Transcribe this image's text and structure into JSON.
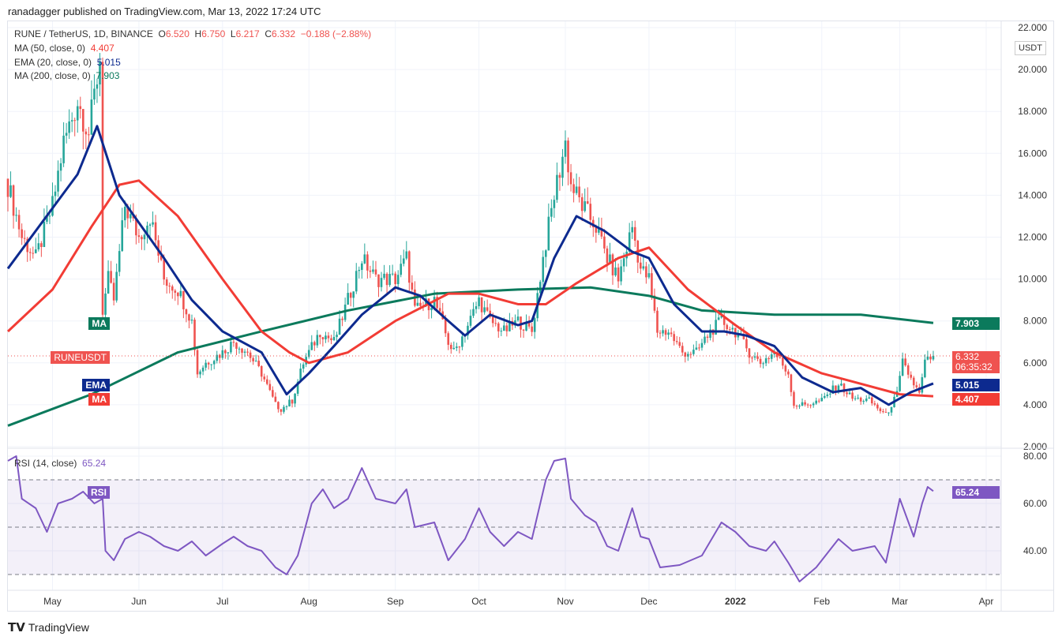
{
  "header": {
    "published": "ranadagger published on TradingView.com, Mar 13, 2022 17:24 UTC"
  },
  "legend": {
    "symbol": "RUNE / TetherUS, 1D, BINANCE",
    "o_label": "O",
    "o": "6.520",
    "h_label": "H",
    "h": "6.750",
    "l_label": "L",
    "l": "6.217",
    "c_label": "C",
    "c": "6.332",
    "change": "−0.188 (−2.88%)",
    "ma50_label": "MA (50, close, 0)",
    "ma50": "4.407",
    "ema20_label": "EMA (20, close, 0)",
    "ema20": "5.015",
    "ma200_label": "MA (200, close, 0)",
    "ma200": "7.903",
    "rsi_label": "RSI (14, close)",
    "rsi": "65.24"
  },
  "tags": {
    "ma_label": "MA",
    "ma200": "7.903",
    "symbol": "RUNEUSDT",
    "price": "6.332",
    "countdown": "06:35:32",
    "ema_label": "EMA",
    "ema": "5.015",
    "ma50": "4.407",
    "rsi_label": "RSI",
    "rsi": "65.24",
    "currency": "USDT"
  },
  "colors": {
    "up": "#26a69a",
    "down": "#ef5350",
    "ema": "#0d2a8f",
    "ma50": "#f23c35",
    "ma200": "#0b7a5c",
    "rsi": "#7e57c2"
  },
  "footer": {
    "brand": "TradingView"
  },
  "chart_data": [
    {
      "type": "candlestick",
      "title": "RUNE / TetherUS, 1D, BINANCE",
      "ylim": [
        2,
        22
      ],
      "yticks": [
        "22.000",
        "20.000",
        "18.000",
        "16.000",
        "14.000",
        "12.000",
        "10.000",
        "8.000",
        "6.000",
        "4.000",
        "2.000"
      ],
      "xticks": [
        "May",
        "Jun",
        "Jul",
        "Aug",
        "Sep",
        "Oct",
        "Nov",
        "Dec",
        "2022",
        "Feb",
        "Mar",
        "Apr"
      ],
      "close": [
        [
          "2021-04-15",
          14.5
        ],
        [
          "2021-04-20",
          12
        ],
        [
          "2021-04-25",
          11
        ],
        [
          "2021-05-01",
          13.5
        ],
        [
          "2021-05-05",
          16.5
        ],
        [
          "2021-05-10",
          18.5
        ],
        [
          "2021-05-14",
          17
        ],
        [
          "2021-05-18",
          20.5
        ],
        [
          "2021-05-19",
          8.5
        ],
        [
          "2021-05-21",
          10
        ],
        [
          "2021-05-23",
          9
        ],
        [
          "2021-05-27",
          13.5
        ],
        [
          "2021-06-01",
          12
        ],
        [
          "2021-06-05",
          13
        ],
        [
          "2021-06-10",
          10
        ],
        [
          "2021-06-15",
          9.5
        ],
        [
          "2021-06-20",
          8
        ],
        [
          "2021-06-22",
          5.5
        ],
        [
          "2021-06-25",
          6
        ],
        [
          "2021-07-01",
          6.5
        ],
        [
          "2021-07-05",
          7
        ],
        [
          "2021-07-10",
          6.5
        ],
        [
          "2021-07-15",
          5.5
        ],
        [
          "2021-07-20",
          4
        ],
        [
          "2021-07-22",
          3.8
        ],
        [
          "2021-07-26",
          4.2
        ],
        [
          "2021-07-30",
          6
        ],
        [
          "2021-08-05",
          7.5
        ],
        [
          "2021-08-10",
          7
        ],
        [
          "2021-08-15",
          9
        ],
        [
          "2021-08-20",
          11
        ],
        [
          "2021-08-25",
          10
        ],
        [
          "2021-09-01",
          10
        ],
        [
          "2021-09-05",
          11
        ],
        [
          "2021-09-08",
          8.5
        ],
        [
          "2021-09-15",
          9
        ],
        [
          "2021-09-20",
          7
        ],
        [
          "2021-09-22",
          6.5
        ],
        [
          "2021-09-26",
          7.5
        ],
        [
          "2021-10-01",
          9
        ],
        [
          "2021-10-05",
          8
        ],
        [
          "2021-10-10",
          7.5
        ],
        [
          "2021-10-15",
          8
        ],
        [
          "2021-10-20",
          7.5
        ],
        [
          "2021-10-24",
          11
        ],
        [
          "2021-10-28",
          14
        ],
        [
          "2021-11-01",
          16.5
        ],
        [
          "2021-11-03",
          14.5
        ],
        [
          "2021-11-07",
          13.5
        ],
        [
          "2021-11-12",
          12.5
        ],
        [
          "2021-11-16",
          11
        ],
        [
          "2021-11-20",
          10
        ],
        [
          "2021-11-25",
          12.5
        ],
        [
          "2021-11-28",
          10.5
        ],
        [
          "2021-12-01",
          10
        ],
        [
          "2021-12-04",
          7.5
        ],
        [
          "2021-12-08",
          7.5
        ],
        [
          "2021-12-13",
          6.5
        ],
        [
          "2021-12-18",
          6.5
        ],
        [
          "2021-12-23",
          7.5
        ],
        [
          "2021-12-27",
          8
        ],
        [
          "2022-01-01",
          7.5
        ],
        [
          "2022-01-06",
          6.5
        ],
        [
          "2022-01-10",
          6
        ],
        [
          "2022-01-15",
          6.5
        ],
        [
          "2022-01-20",
          5.5
        ],
        [
          "2022-01-22",
          4
        ],
        [
          "2022-01-26",
          4
        ],
        [
          "2022-02-01",
          4.2
        ],
        [
          "2022-02-07",
          5
        ],
        [
          "2022-02-12",
          4.3
        ],
        [
          "2022-02-18",
          4.2
        ],
        [
          "2022-02-24",
          3.5
        ],
        [
          "2022-02-28",
          4.5
        ],
        [
          "2022-03-02",
          6
        ],
        [
          "2022-03-06",
          5
        ],
        [
          "2022-03-08",
          4.5
        ],
        [
          "2022-03-10",
          6
        ],
        [
          "2022-03-13",
          6.332
        ]
      ],
      "ema20": [
        [
          "2021-04-15",
          10.5
        ],
        [
          "2021-05-10",
          15
        ],
        [
          "2021-05-17",
          17.3
        ],
        [
          "2021-05-25",
          14
        ],
        [
          "2021-06-10",
          11
        ],
        [
          "2021-06-20",
          9
        ],
        [
          "2021-07-01",
          7.5
        ],
        [
          "2021-07-15",
          6.5
        ],
        [
          "2021-07-24",
          4.5
        ],
        [
          "2021-08-01",
          5.5
        ],
        [
          "2021-08-10",
          6.8
        ],
        [
          "2021-08-20",
          8.3
        ],
        [
          "2021-09-01",
          9.6
        ],
        [
          "2021-09-10",
          9.2
        ],
        [
          "2021-09-20",
          8
        ],
        [
          "2021-09-26",
          7.3
        ],
        [
          "2021-10-05",
          8.3
        ],
        [
          "2021-10-15",
          7.8
        ],
        [
          "2021-10-20",
          8
        ],
        [
          "2021-10-28",
          11
        ],
        [
          "2021-11-05",
          13
        ],
        [
          "2021-11-15",
          12.3
        ],
        [
          "2021-11-25",
          11.3
        ],
        [
          "2021-12-01",
          11
        ],
        [
          "2021-12-10",
          8.8
        ],
        [
          "2021-12-20",
          7.5
        ],
        [
          "2021-12-28",
          7.5
        ],
        [
          "2022-01-05",
          7.3
        ],
        [
          "2022-01-15",
          6.8
        ],
        [
          "2022-01-25",
          5.3
        ],
        [
          "2022-02-05",
          4.6
        ],
        [
          "2022-02-15",
          4.8
        ],
        [
          "2022-02-25",
          4
        ],
        [
          "2022-03-05",
          4.6
        ],
        [
          "2022-03-13",
          5.015
        ]
      ],
      "ma50": [
        [
          "2021-04-15",
          7.5
        ],
        [
          "2021-05-01",
          9.5
        ],
        [
          "2021-05-15",
          12.5
        ],
        [
          "2021-05-25",
          14.5
        ],
        [
          "2021-06-01",
          14.7
        ],
        [
          "2021-06-15",
          13
        ],
        [
          "2021-07-01",
          10
        ],
        [
          "2021-07-15",
          7.5
        ],
        [
          "2021-07-25",
          6.5
        ],
        [
          "2021-08-01",
          6
        ],
        [
          "2021-08-15",
          6.5
        ],
        [
          "2021-09-01",
          8
        ],
        [
          "2021-09-20",
          9.3
        ],
        [
          "2021-10-01",
          9.3
        ],
        [
          "2021-10-15",
          8.8
        ],
        [
          "2021-10-25",
          8.8
        ],
        [
          "2021-11-05",
          9.8
        ],
        [
          "2021-11-20",
          11
        ],
        [
          "2021-12-01",
          11.5
        ],
        [
          "2021-12-15",
          9.5
        ],
        [
          "2022-01-01",
          7.8
        ],
        [
          "2022-01-15",
          6.5
        ],
        [
          "2022-02-01",
          5.5
        ],
        [
          "2022-02-15",
          5
        ],
        [
          "2022-03-01",
          4.5
        ],
        [
          "2022-03-13",
          4.407
        ]
      ],
      "ma200": [
        [
          "2021-04-15",
          3
        ],
        [
          "2021-05-15",
          4.5
        ],
        [
          "2021-06-15",
          6.5
        ],
        [
          "2021-07-15",
          7.5
        ],
        [
          "2021-08-15",
          8.5
        ],
        [
          "2021-09-15",
          9.3
        ],
        [
          "2021-10-15",
          9.5
        ],
        [
          "2021-11-10",
          9.6
        ],
        [
          "2021-12-01",
          9.2
        ],
        [
          "2021-12-20",
          8.5
        ],
        [
          "2022-01-15",
          8.3
        ],
        [
          "2022-02-15",
          8.3
        ],
        [
          "2022-03-13",
          7.903
        ]
      ]
    },
    {
      "type": "line",
      "title": "RSI (14, close)",
      "ylim": [
        20,
        85
      ],
      "yticks": [
        "80.00",
        "60.00",
        "40.00"
      ],
      "bands": [
        30,
        50,
        70
      ],
      "values": [
        [
          "2021-04-15",
          78
        ],
        [
          "2021-04-18",
          80
        ],
        [
          "2021-04-20",
          62
        ],
        [
          "2021-04-25",
          58
        ],
        [
          "2021-04-29",
          48
        ],
        [
          "2021-05-03",
          60
        ],
        [
          "2021-05-08",
          62
        ],
        [
          "2021-05-12",
          65
        ],
        [
          "2021-05-16",
          60
        ],
        [
          "2021-05-19",
          62
        ],
        [
          "2021-05-20",
          40
        ],
        [
          "2021-05-23",
          36
        ],
        [
          "2021-05-27",
          45
        ],
        [
          "2021-06-01",
          48
        ],
        [
          "2021-06-05",
          46
        ],
        [
          "2021-06-10",
          42
        ],
        [
          "2021-06-15",
          40
        ],
        [
          "2021-06-20",
          44
        ],
        [
          "2021-06-25",
          38
        ],
        [
          "2021-07-01",
          43
        ],
        [
          "2021-07-05",
          46
        ],
        [
          "2021-07-10",
          42
        ],
        [
          "2021-07-15",
          40
        ],
        [
          "2021-07-20",
          33
        ],
        [
          "2021-07-24",
          30
        ],
        [
          "2021-07-28",
          38
        ],
        [
          "2021-08-02",
          60
        ],
        [
          "2021-08-06",
          66
        ],
        [
          "2021-08-10",
          58
        ],
        [
          "2021-08-15",
          62
        ],
        [
          "2021-08-20",
          75
        ],
        [
          "2021-08-25",
          62
        ],
        [
          "2021-09-01",
          60
        ],
        [
          "2021-09-05",
          66
        ],
        [
          "2021-09-08",
          50
        ],
        [
          "2021-09-15",
          52
        ],
        [
          "2021-09-20",
          36
        ],
        [
          "2021-09-26",
          45
        ],
        [
          "2021-10-01",
          58
        ],
        [
          "2021-10-05",
          48
        ],
        [
          "2021-10-10",
          42
        ],
        [
          "2021-10-15",
          48
        ],
        [
          "2021-10-20",
          45
        ],
        [
          "2021-10-25",
          70
        ],
        [
          "2021-10-28",
          78
        ],
        [
          "2021-11-01",
          79
        ],
        [
          "2021-11-03",
          62
        ],
        [
          "2021-11-08",
          55
        ],
        [
          "2021-11-12",
          52
        ],
        [
          "2021-11-16",
          42
        ],
        [
          "2021-11-20",
          40
        ],
        [
          "2021-11-25",
          58
        ],
        [
          "2021-11-28",
          46
        ],
        [
          "2021-12-01",
          45
        ],
        [
          "2021-12-05",
          33
        ],
        [
          "2021-12-12",
          34
        ],
        [
          "2021-12-20",
          38
        ],
        [
          "2021-12-27",
          52
        ],
        [
          "2022-01-01",
          48
        ],
        [
          "2022-01-06",
          42
        ],
        [
          "2022-01-12",
          40
        ],
        [
          "2022-01-15",
          44
        ],
        [
          "2022-01-20",
          35
        ],
        [
          "2022-01-24",
          27
        ],
        [
          "2022-01-30",
          33
        ],
        [
          "2022-02-07",
          45
        ],
        [
          "2022-02-12",
          40
        ],
        [
          "2022-02-20",
          42
        ],
        [
          "2022-02-24",
          35
        ],
        [
          "2022-03-01",
          62
        ],
        [
          "2022-03-06",
          46
        ],
        [
          "2022-03-09",
          60
        ],
        [
          "2022-03-11",
          67
        ],
        [
          "2022-03-13",
          65.24
        ]
      ]
    }
  ]
}
